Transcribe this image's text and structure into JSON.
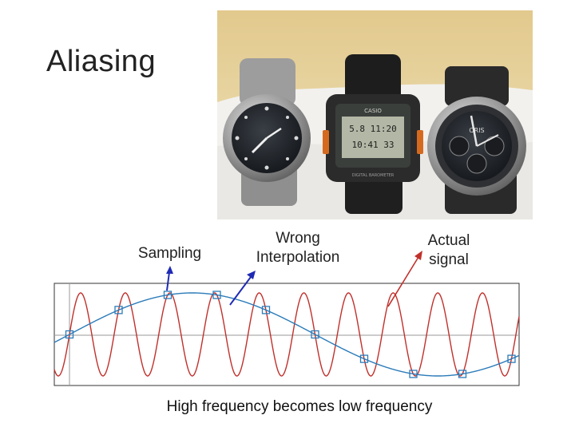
{
  "slide": {
    "title": "Aliasing",
    "labels": {
      "sampling": "Sampling",
      "wrong_interpolation": "Wrong Interpolation",
      "actual_signal": "Actual signal"
    },
    "caption": "High frequency becomes low frequency"
  },
  "photo": {
    "description_icons": [
      "analog-watch-icon",
      "digital-watch-icon",
      "chronograph-watch-icon"
    ],
    "digital_watch_text": [
      "CASIO",
      "5.8 11:20",
      "10:41 33",
      "DIGITAL BAROMETER"
    ],
    "chronograph_brand": "ORIS"
  },
  "colors": {
    "actual_signal": "#c0302b",
    "interpolation": "#2b7bb9",
    "arrow_blue": "#1f2bb5",
    "arrow_red": "#c0302b",
    "sample_marker": "#2b7bb9"
  }
}
